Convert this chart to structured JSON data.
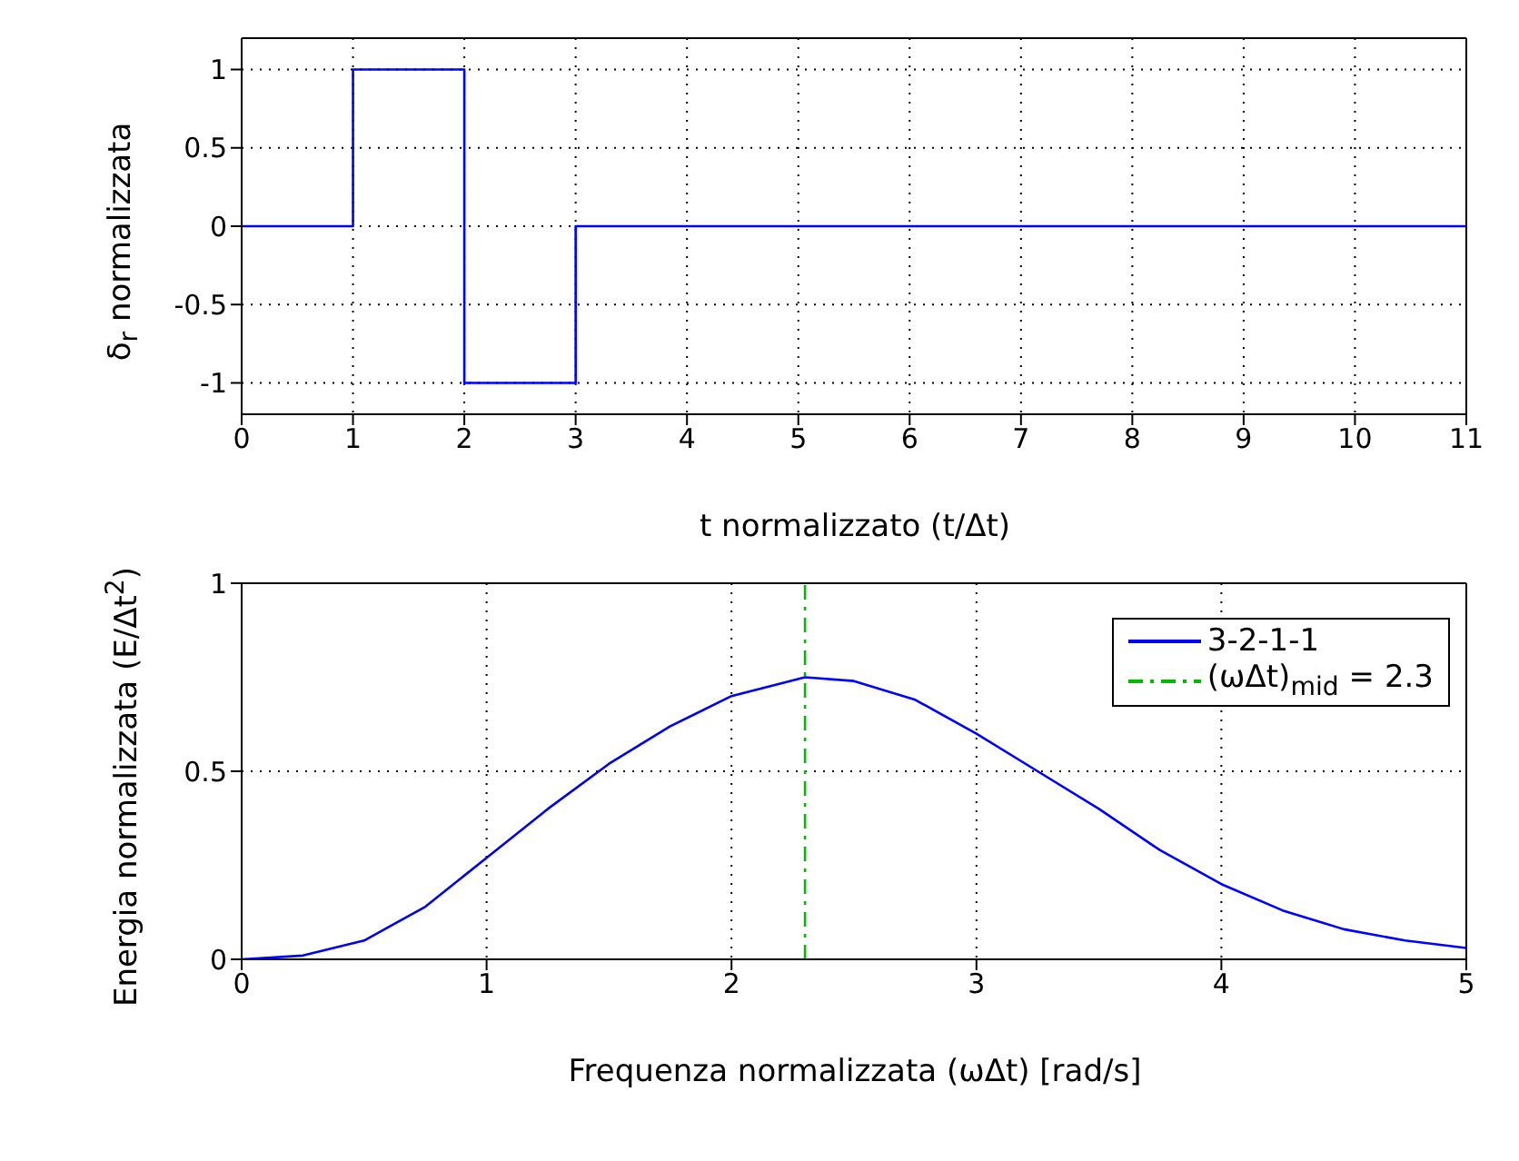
{
  "chart_data": [
    {
      "type": "step",
      "ylabel": "δ$_{r}$ normalizzata",
      "xlabel": "t normalizzato (t/Δt)",
      "xlim": [
        0,
        11
      ],
      "xticks": [
        0,
        1,
        2,
        3,
        4,
        5,
        6,
        7,
        8,
        9,
        10,
        11
      ],
      "ylim": [
        -1.2,
        1.2
      ],
      "yticks": [
        -1,
        -0.5,
        0,
        0.5,
        1
      ],
      "grid": true,
      "line_style": "solid",
      "series": [
        {
          "color": "#0000ff",
          "x": [
            0,
            1,
            2,
            3,
            11
          ],
          "values": [
            0,
            1,
            -1,
            0,
            0
          ]
        }
      ]
    },
    {
      "type": "line",
      "ylabel": "Energia normalizzata (E/Δt$^{2}$)",
      "xlabel": "Frequenza normalizzata (ωΔt) [rad/s]",
      "xlim": [
        0,
        5
      ],
      "xticks": [
        0,
        1,
        2,
        3,
        4,
        5
      ],
      "ylim": [
        0,
        1
      ],
      "yticks": [
        0,
        0.5,
        1
      ],
      "grid": true,
      "legend": "top right",
      "line_style": "solid",
      "series": [
        {
          "name": "3-2-1-1",
          "color": "#0000ff",
          "x": [
            0,
            0.25,
            0.5,
            0.75,
            1,
            1.25,
            1.5,
            1.75,
            2,
            2.3,
            2.5,
            2.75,
            3,
            3.25,
            3.5,
            3.75,
            4,
            4.25,
            4.5,
            4.75,
            5
          ],
          "values": [
            0,
            0.01,
            0.05,
            0.14,
            0.27,
            0.4,
            0.52,
            0.62,
            0.7,
            0.75,
            0.74,
            0.69,
            0.6,
            0.5,
            0.4,
            0.29,
            0.2,
            0.13,
            0.08,
            0.05,
            0.03
          ]
        },
        {
          "name": "(ωΔt)$_{mid}$ = 2.3",
          "color": "#00bb00",
          "line_style": "dashed",
          "x": [
            2.3,
            2.3
          ],
          "values": [
            0,
            1
          ]
        }
      ]
    }
  ]
}
